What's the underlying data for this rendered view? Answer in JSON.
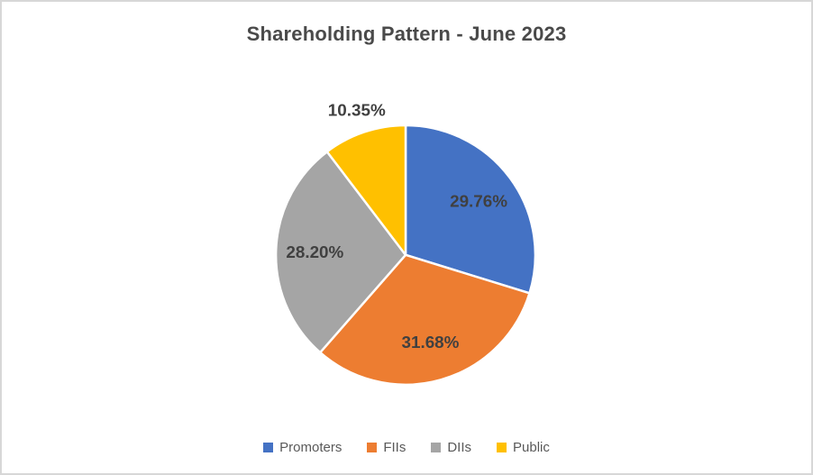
{
  "chart_data": {
    "type": "pie",
    "title": "Shareholding Pattern - June 2023",
    "categories": [
      "Promoters",
      "FIIs",
      "DIIs",
      "Public"
    ],
    "values": [
      29.76,
      31.68,
      28.2,
      10.35
    ],
    "labels": [
      "29.76%",
      "31.68%",
      "28.20%",
      "10.35%"
    ],
    "colors": [
      "#4472C4",
      "#ED7D31",
      "#A5A5A5",
      "#FFC000"
    ],
    "label_placement": [
      "inside",
      "inside",
      "inside",
      "outside"
    ],
    "legend_position": "bottom",
    "start_angle_deg": 0,
    "direction": "clockwise",
    "title_color": "#4a4a4a",
    "data_label_color": "#404040",
    "legend_text_color": "#595959",
    "slice_border_color": "#ffffff",
    "frame_border_color": "#d7d7d7"
  }
}
